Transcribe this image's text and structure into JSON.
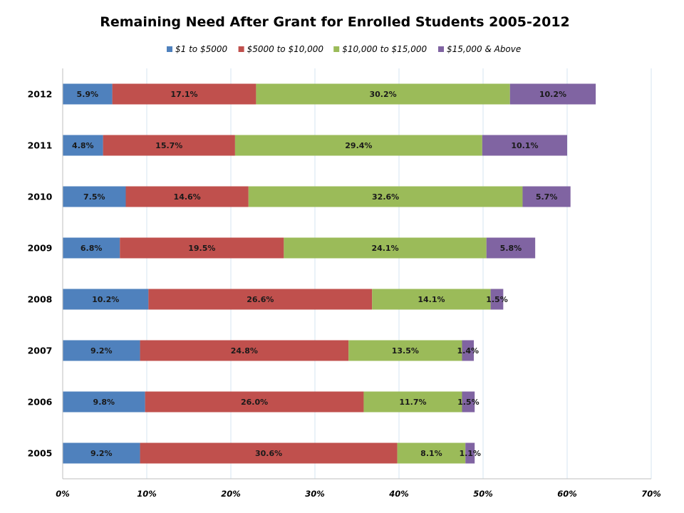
{
  "chart_data": {
    "type": "bar",
    "orientation": "horizontal",
    "stacked": true,
    "title": "Remaining Need After Grant for Enrolled Students 2005-2012",
    "xlabel": "",
    "ylabel": "",
    "categories": [
      "2012",
      "2011",
      "2010",
      "2009",
      "2008",
      "2007",
      "2006",
      "2005"
    ],
    "series": [
      {
        "name": "$1 to $5000",
        "color": "#4F81BD",
        "values": [
          5.9,
          4.8,
          7.5,
          6.8,
          10.2,
          9.2,
          9.8,
          9.2
        ],
        "labels": [
          "5.9%",
          "4.8%",
          "7.5%",
          "6.8%",
          "10.2%",
          "9.2%",
          "9.8%",
          "9.2%"
        ]
      },
      {
        "name": "$5000 to $10,000",
        "color": "#C0504D",
        "values": [
          17.1,
          15.7,
          14.6,
          19.5,
          26.6,
          24.8,
          26.0,
          30.6
        ],
        "labels": [
          "17.1%",
          "15.7%",
          "14.6%",
          "19.5%",
          "26.6%",
          "24.8%",
          "26.0%",
          "30.6%"
        ]
      },
      {
        "name": "$10,000 to $15,000",
        "color": "#9BBB59",
        "values": [
          30.2,
          29.4,
          32.6,
          24.1,
          14.1,
          13.5,
          11.7,
          8.1
        ],
        "labels": [
          "30.2%",
          "29.4%",
          "32.6%",
          "24.1%",
          "14.1%",
          "13.5%",
          "11.7%",
          "8.1%"
        ]
      },
      {
        "name": "$15,000 & Above",
        "color": "#8064A2",
        "values": [
          10.2,
          10.1,
          5.7,
          5.8,
          1.5,
          1.4,
          1.5,
          1.1
        ],
        "labels": [
          "10.2%",
          "10.1%",
          "5.7%",
          "5.8%",
          "1.5%",
          "1.4%",
          "1.5%",
          "1.1%"
        ]
      }
    ],
    "x_ticks": [
      0,
      10,
      20,
      30,
      40,
      50,
      60,
      70
    ],
    "x_tick_labels": [
      "0%",
      "10%",
      "20%",
      "30%",
      "40%",
      "50%",
      "60%",
      "70%"
    ],
    "xlim": [
      0,
      70
    ],
    "grid": "vertical",
    "gridline_color": "#D6E6F0",
    "legend_position": "top"
  }
}
